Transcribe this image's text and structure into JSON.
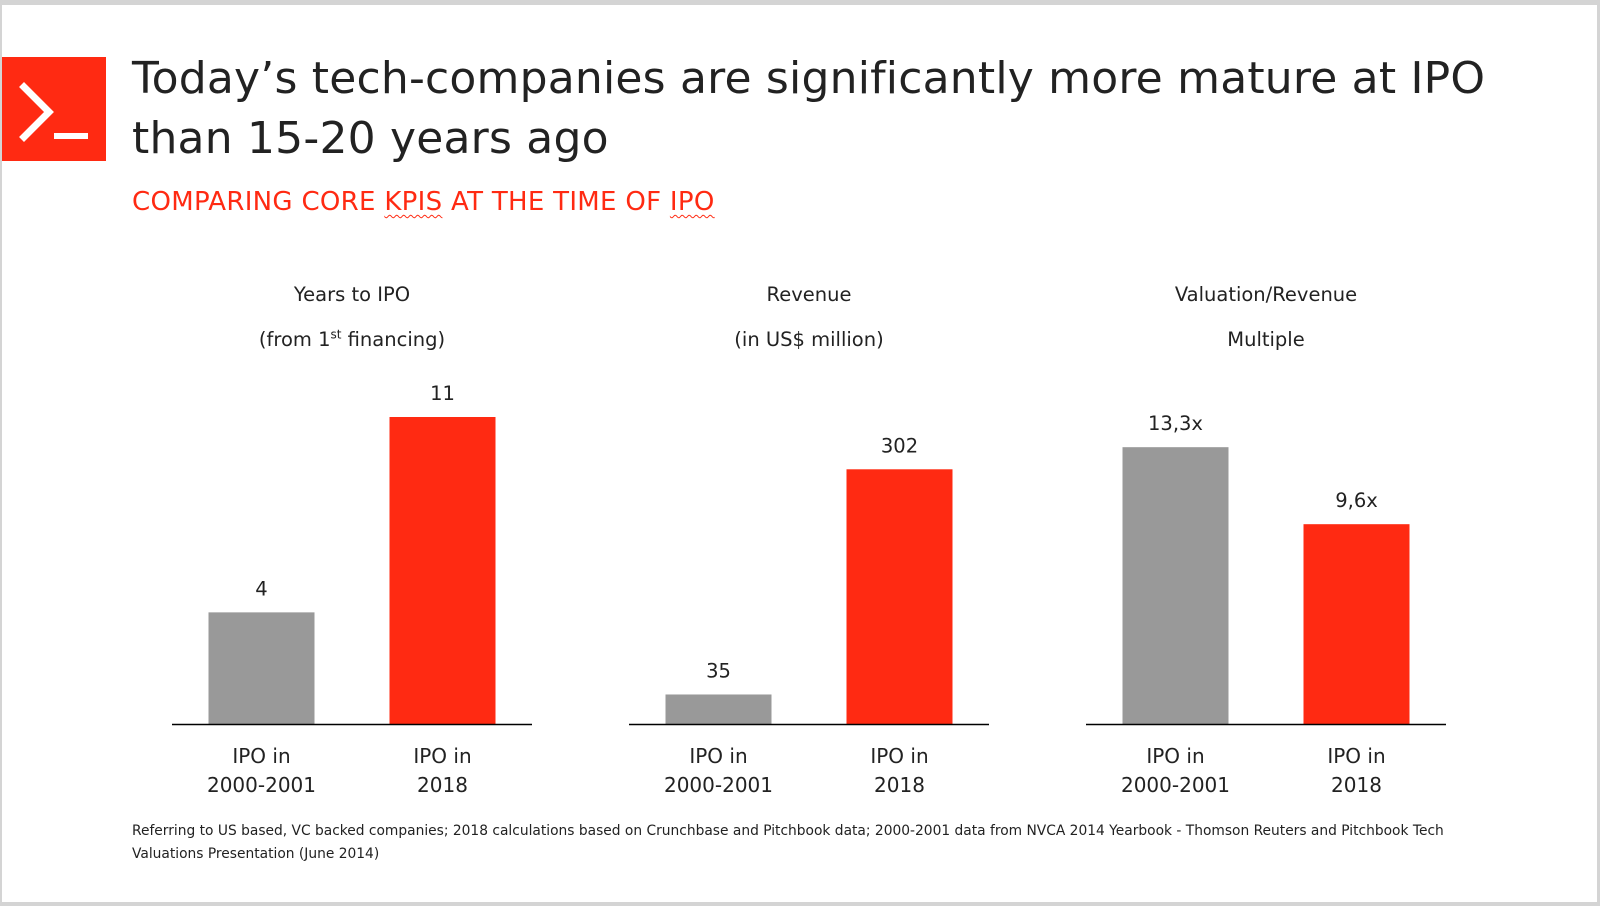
{
  "slide": {
    "title": "Today’s tech-companies are significantly more mature at IPO than 15-20 years ago",
    "subtitle_parts": [
      "COMPARING CORE ",
      "KPIS",
      " AT THE TIME OF ",
      "IPO"
    ],
    "footnote": "Referring to US based, VC backed companies; 2018 calculations based on Crunchbase and Pitchbook data; 2000-2001 data from NVCA 2014 Yearbook - Thomson Reuters and Pitchbook Tech Valuations Presentation (June 2014)",
    "logo_icon": "terminal-prompt-icon"
  },
  "colors": {
    "accent": "#ff2a12",
    "gray_bar": "#999999",
    "text": "#222222"
  },
  "chart_data": [
    {
      "type": "bar",
      "title_line1": "Years to IPO",
      "title_line2_pre": "(from 1",
      "title_line2_sup": "st",
      "title_line2_post": " financing)",
      "categories": [
        [
          "IPO in",
          "2000-2001"
        ],
        [
          "IPO in",
          "2018"
        ]
      ],
      "values": [
        4,
        11
      ],
      "labels": [
        "4",
        "11"
      ],
      "colors": [
        "#999999",
        "#ff2a12"
      ],
      "ylim": [
        0,
        11
      ]
    },
    {
      "type": "bar",
      "title_line1": "Revenue",
      "title_line2": "(in US$ million)",
      "categories": [
        [
          "IPO in",
          "2000-2001"
        ],
        [
          "IPO in",
          "2018"
        ]
      ],
      "values": [
        35,
        302
      ],
      "labels": [
        "35",
        "302"
      ],
      "colors": [
        "#999999",
        "#ff2a12"
      ],
      "ylim": [
        0,
        364
      ]
    },
    {
      "type": "bar",
      "title_line1": "Valuation/Revenue",
      "title_line2": "Multiple",
      "categories": [
        [
          "IPO in",
          "2000-2001"
        ],
        [
          "IPO in",
          "2018"
        ]
      ],
      "values": [
        13.3,
        9.6
      ],
      "labels": [
        "13,3x",
        "9,6x"
      ],
      "colors": [
        "#999999",
        "#ff2a12"
      ],
      "ylim": [
        0,
        14.75
      ]
    }
  ]
}
